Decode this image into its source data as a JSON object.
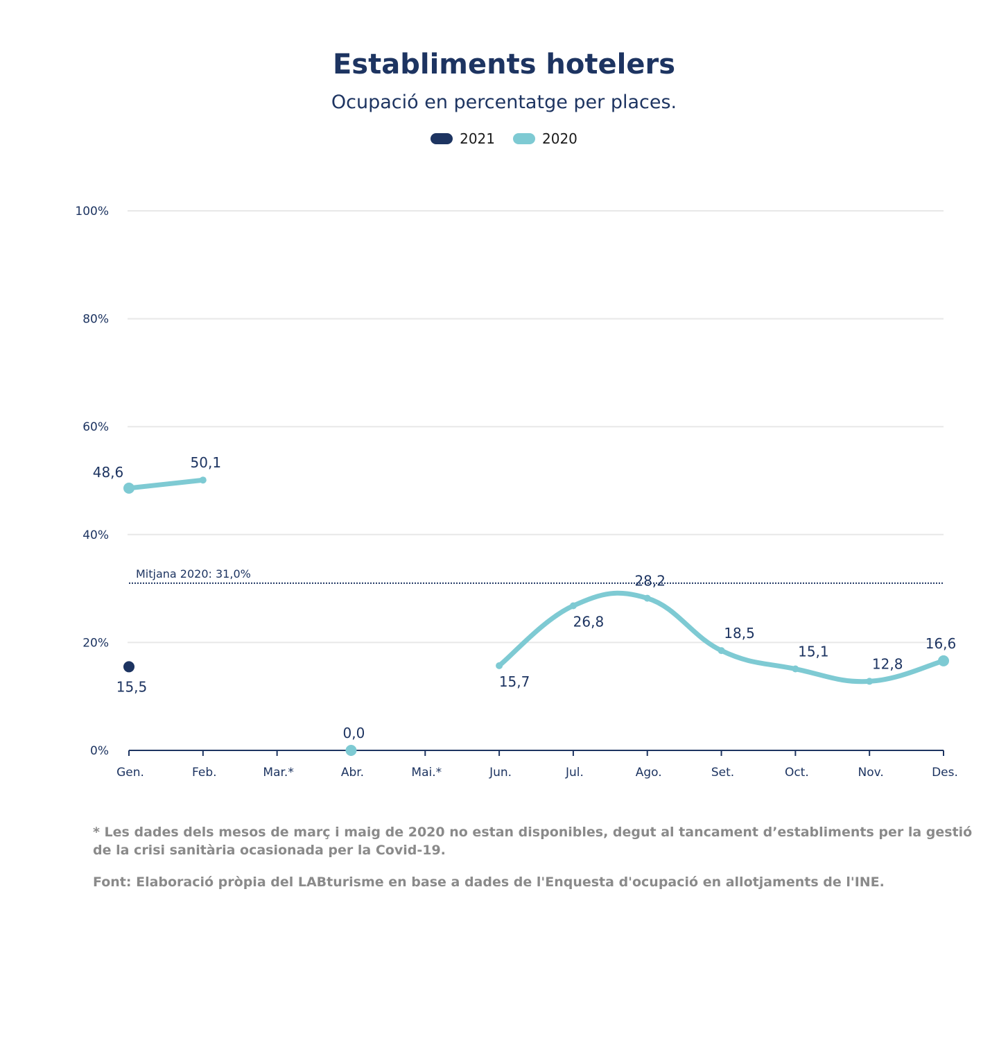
{
  "chart_data": {
    "type": "line",
    "title": "Establiments hotelers",
    "subtitle": "Ocupació en percentatge per places.",
    "categories": [
      "Gen.",
      "Feb.",
      "Mar.*",
      "Abr.",
      "Mai.*",
      "Jun.",
      "Jul.",
      "Ago.",
      "Set.",
      "Oct.",
      "Nov.",
      "Des."
    ],
    "series": [
      {
        "name": "2021",
        "color": "#1d3461",
        "values": [
          15.5,
          null,
          null,
          null,
          null,
          null,
          null,
          null,
          null,
          null,
          null,
          null
        ],
        "labels": [
          "15,5",
          "",
          "",
          "",
          "",
          "",
          "",
          "",
          "",
          "",
          "",
          ""
        ]
      },
      {
        "name": "2020",
        "color": "#7ecad3",
        "values": [
          48.6,
          50.1,
          null,
          0.0,
          null,
          15.7,
          26.8,
          28.2,
          18.5,
          15.1,
          12.8,
          16.6
        ],
        "labels": [
          "48,6",
          "50,1",
          "",
          "0,0",
          "",
          "15,7",
          "26,8",
          "28,2",
          "18,5",
          "15,1",
          "12,8",
          "16,6"
        ]
      }
    ],
    "y_ticks": [
      "0%",
      "20%",
      "40%",
      "60%",
      "80%",
      "100%"
    ],
    "ylim": [
      0,
      100
    ],
    "reference_line": {
      "value": 31.0,
      "label": "Mitjana 2020: 31,0%"
    },
    "grid": true,
    "legend_position": "top-center"
  },
  "notes": {
    "footnote": "* Les dades dels mesos de març i maig de 2020 no estan disponibles, degut al tancament d’establiments per la gestió de la crisi sanitària ocasionada per la Covid-19.",
    "source": "Font: Elaboració pròpia del LABturisme en base a dades de l'Enquesta d'ocupació en allotjaments de l'INE."
  }
}
